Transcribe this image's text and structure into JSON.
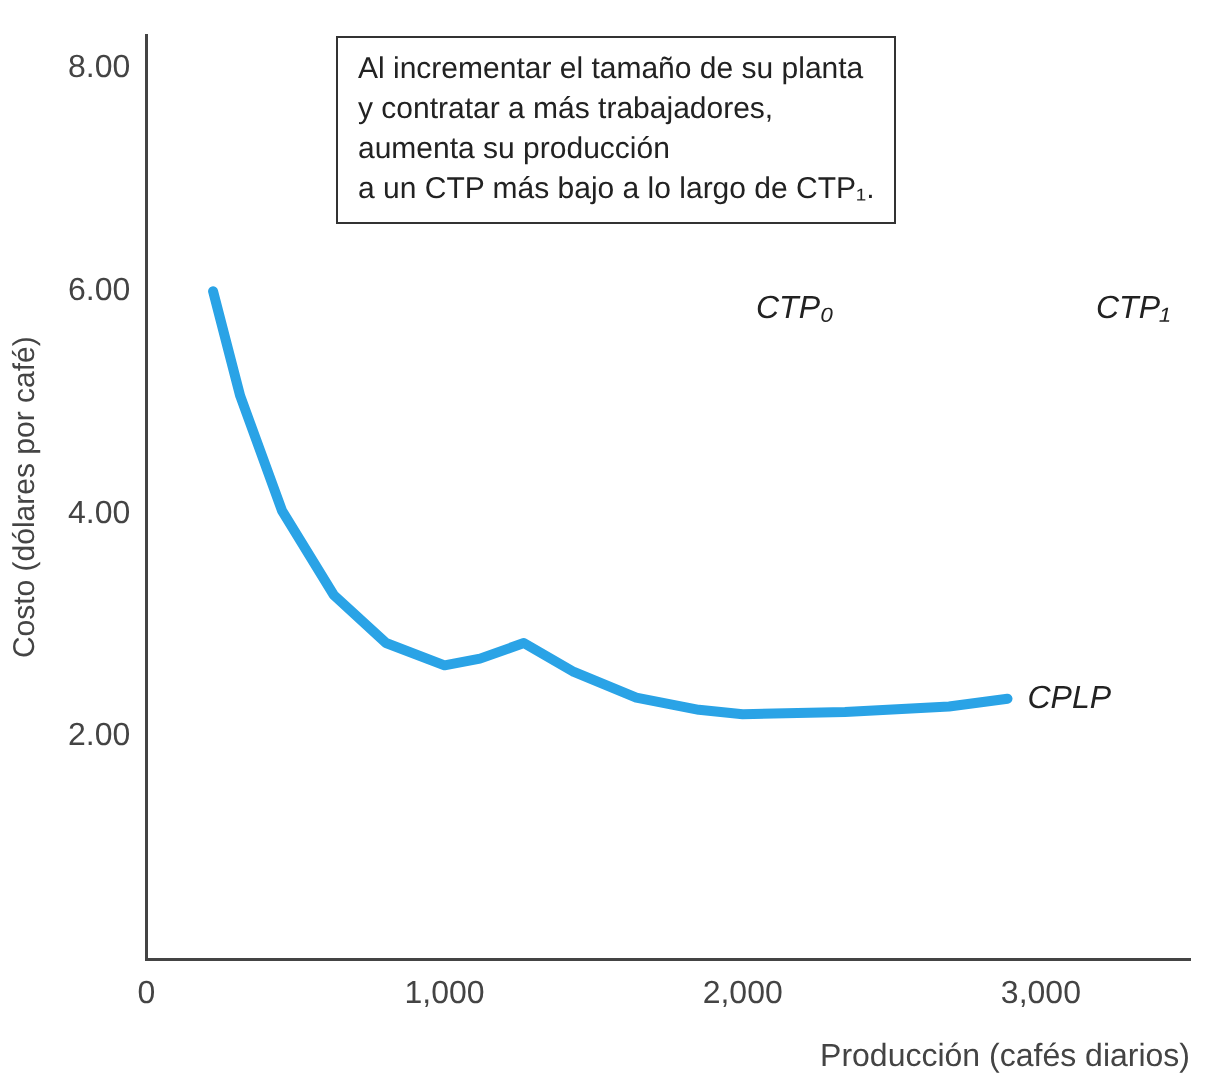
{
  "chart_data": {
    "type": "line",
    "xlabel": "Producción (cafés diarios)",
    "ylabel": "Costo (dólares por café)",
    "xlim": [
      0,
      3500
    ],
    "ylim": [
      0,
      8.3
    ],
    "xticks": [
      0,
      {
        "value": 1000,
        "label": "1,000"
      },
      {
        "value": 2000,
        "label": "2,000"
      },
      {
        "value": 3000,
        "label": "3,000"
      }
    ],
    "yticks": [
      {
        "value": 2,
        "label": "2.00"
      },
      {
        "value": 4,
        "label": "4.00"
      },
      {
        "value": 6,
        "label": "6.00"
      },
      {
        "value": 8,
        "label": "8.00"
      }
    ],
    "grid": false,
    "legend": false,
    "marker": "none",
    "line_style": "solid",
    "series": [
      {
        "name": "CPLP",
        "color": "#2aa3e6",
        "x": [
          224,
          315,
          455,
          629,
          804,
          1000,
          1119,
          1266,
          1434,
          1643,
          1853,
          2000,
          2343,
          2692,
          2888
        ],
        "values": [
          6.0,
          5.06,
          4.03,
          3.27,
          2.84,
          2.64,
          2.7,
          2.84,
          2.58,
          2.35,
          2.24,
          2.2,
          2.22,
          2.27,
          2.34
        ]
      }
    ],
    "annotations": [
      "Al incrementar el tamaño de su planta\ny contratar a más trabajadores,\naumenta su producción\na un CTP más bajo a lo largo de CTP₁.",
      "CTP₀",
      "CTP₁"
    ]
  }
}
